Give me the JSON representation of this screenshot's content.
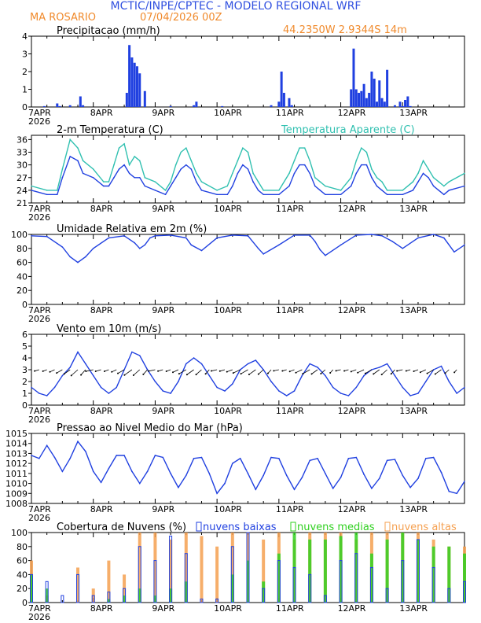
{
  "header": {
    "title": "MCTIC/INPE/CPTEC - MODELO REGIONAL WRF",
    "station": "MA ROSARIO",
    "run": "07/04/2026 00Z",
    "coords": "44.2350W  2.9344S  14m"
  },
  "colors": {
    "title_blue": "#3050e0",
    "header_orange": "#f08a2c",
    "series_blue": "#2040e0",
    "series_cyan": "#30c0b0",
    "cloud_orange": "#f5a050",
    "cloud_green": "#30d020",
    "wind_arrow": "#000000"
  },
  "x_axis": {
    "day_labels": [
      "7APR",
      "8APR",
      "9APR",
      "10APR",
      "11APR",
      "12APR",
      "13APR"
    ],
    "year_label": "2026",
    "x_range_hours": [
      0,
      168
    ]
  },
  "chart_data": [
    {
      "type": "bar",
      "title": "Precipitacao (mm/h)",
      "ylim": [
        0,
        4
      ],
      "yticks": [
        0,
        1,
        2,
        3,
        4
      ],
      "series": [
        {
          "name": "",
          "x": [
            5,
            10,
            11,
            15,
            19,
            20,
            37,
            38,
            39,
            40,
            41,
            42,
            44,
            54,
            63,
            64,
            74,
            93,
            96,
            97,
            98,
            100,
            101,
            124,
            125,
            126,
            127,
            128,
            129,
            130,
            131,
            132,
            133,
            134,
            135,
            136,
            137,
            138,
            141,
            143,
            144,
            145,
            146,
            147
          ],
          "values": [
            0.05,
            0.2,
            0.05,
            0.1,
            0.6,
            0.1,
            0.8,
            3.5,
            2.8,
            2.5,
            2.3,
            1.9,
            0.9,
            0.05,
            0.1,
            0.3,
            0.05,
            0.1,
            0.3,
            2.0,
            0.8,
            0.5,
            0.1,
            1.0,
            3.3,
            1.0,
            0.8,
            0.9,
            1.3,
            0.5,
            0.8,
            2.0,
            1.6,
            0.3,
            1.5,
            0.5,
            0.3,
            2.1,
            0.1,
            0.3,
            0.05,
            0.4,
            0.6,
            0.05
          ]
        }
      ]
    },
    {
      "type": "line",
      "title": "2-m Temperatura (C)",
      "legend_label": "Temperatura Aparente (C)",
      "ylim": [
        21,
        37
      ],
      "yticks": [
        21,
        24,
        27,
        30,
        33,
        36
      ],
      "series": [
        {
          "name": "",
          "x": [
            0,
            6,
            10,
            12,
            15,
            18,
            20,
            24,
            28,
            30,
            32,
            34,
            36,
            38,
            40,
            42,
            44,
            48,
            52,
            54,
            56,
            58,
            60,
            62,
            64,
            66,
            72,
            76,
            78,
            80,
            82,
            84,
            86,
            88,
            90,
            96,
            100,
            102,
            104,
            106,
            108,
            110,
            112,
            114,
            120,
            124,
            126,
            128,
            130,
            132,
            134,
            136,
            138,
            144,
            148,
            150,
            152,
            154,
            156,
            158,
            160,
            162,
            168
          ],
          "values": [
            24,
            23,
            23,
            27,
            32,
            31,
            28,
            27,
            25,
            25,
            27,
            29,
            30,
            28,
            27,
            27,
            25,
            24,
            23,
            25,
            27,
            29,
            30,
            29,
            26,
            24,
            23,
            23,
            25,
            28,
            30,
            29,
            26,
            24,
            23,
            23,
            25,
            28,
            30,
            30,
            28,
            25,
            24,
            23,
            23,
            25,
            28,
            30,
            30,
            27,
            25,
            24,
            23,
            23,
            24,
            26,
            28,
            27,
            25,
            24,
            23,
            24,
            25
          ]
        },
        {
          "name": "Temperatura Aparente (C)",
          "x": [
            0,
            6,
            10,
            12,
            15,
            18,
            20,
            24,
            28,
            30,
            32,
            34,
            36,
            38,
            40,
            42,
            44,
            48,
            52,
            54,
            56,
            58,
            60,
            62,
            64,
            66,
            72,
            76,
            78,
            80,
            82,
            84,
            86,
            88,
            90,
            96,
            100,
            102,
            104,
            106,
            108,
            110,
            112,
            114,
            120,
            124,
            126,
            128,
            130,
            132,
            134,
            136,
            138,
            144,
            148,
            150,
            152,
            154,
            156,
            158,
            160,
            162,
            168
          ],
          "values": [
            25,
            24,
            24,
            29,
            36,
            34,
            31,
            29,
            26,
            26,
            30,
            34,
            35,
            30,
            32,
            31,
            27,
            26,
            24,
            26,
            30,
            33,
            34,
            31,
            28,
            26,
            24,
            25,
            28,
            31,
            34,
            33,
            28,
            26,
            24,
            24,
            28,
            31,
            34,
            34,
            31,
            27,
            26,
            25,
            24,
            27,
            31,
            34,
            33,
            29,
            27,
            26,
            24,
            24,
            26,
            28,
            31,
            29,
            27,
            26,
            25,
            26,
            28
          ]
        }
      ]
    },
    {
      "type": "line",
      "title": "Umidade Relativa em 2m (%)",
      "ylim": [
        0,
        100
      ],
      "yticks": [
        0,
        20,
        40,
        60,
        80,
        100
      ],
      "series": [
        {
          "name": "",
          "x": [
            0,
            6,
            12,
            15,
            18,
            21,
            24,
            30,
            36,
            40,
            42,
            44,
            46,
            48,
            54,
            60,
            62,
            66,
            72,
            78,
            84,
            88,
            90,
            96,
            102,
            108,
            110,
            112,
            114,
            120,
            126,
            132,
            136,
            140,
            144,
            150,
            156,
            160,
            164,
            168
          ],
          "values": [
            98,
            97,
            82,
            68,
            60,
            68,
            80,
            95,
            98,
            88,
            80,
            85,
            95,
            98,
            99,
            95,
            85,
            77,
            95,
            99,
            98,
            80,
            72,
            85,
            99,
            99,
            90,
            78,
            70,
            85,
            99,
            100,
            98,
            90,
            80,
            95,
            100,
            95,
            75,
            85
          ]
        }
      ]
    },
    {
      "type": "line",
      "title": "Vento em 10m (m/s)",
      "ylim": [
        0,
        6
      ],
      "yticks": [
        0,
        1,
        2,
        3,
        4,
        5,
        6
      ],
      "series": [
        {
          "name": "",
          "x": [
            0,
            3,
            6,
            9,
            12,
            15,
            18,
            21,
            24,
            27,
            30,
            33,
            36,
            39,
            42,
            45,
            48,
            51,
            54,
            57,
            60,
            63,
            66,
            69,
            72,
            75,
            78,
            81,
            84,
            87,
            90,
            93,
            96,
            99,
            102,
            105,
            108,
            111,
            114,
            117,
            120,
            123,
            126,
            129,
            132,
            135,
            138,
            141,
            144,
            147,
            150,
            153,
            156,
            159,
            162,
            165,
            168
          ],
          "values": [
            1.5,
            1.0,
            0.8,
            1.5,
            2.5,
            3.2,
            4.5,
            3.5,
            2.5,
            1.5,
            1.0,
            1.5,
            3.0,
            4.5,
            4.2,
            3.0,
            2.0,
            1.2,
            1.0,
            2.0,
            3.5,
            4.0,
            3.5,
            2.5,
            1.5,
            1.2,
            1.8,
            3.0,
            3.5,
            3.8,
            3.0,
            2.0,
            1.2,
            0.8,
            1.2,
            2.5,
            3.5,
            3.2,
            2.5,
            1.5,
            1.0,
            0.8,
            1.5,
            2.5,
            3.0,
            3.2,
            3.5,
            2.5,
            1.5,
            0.8,
            1.0,
            2.0,
            3.0,
            3.3,
            2.0,
            1.0,
            1.5
          ]
        }
      ]
    },
    {
      "type": "line",
      "title": "Pressao ao Nivel Medio do Mar (hPa)",
      "ylim": [
        1008,
        1015
      ],
      "yticks": [
        1008,
        1009,
        1010,
        1011,
        1012,
        1013,
        1014,
        1015
      ],
      "series": [
        {
          "name": "",
          "x": [
            0,
            3,
            6,
            9,
            12,
            15,
            18,
            21,
            24,
            27,
            30,
            33,
            36,
            39,
            42,
            45,
            48,
            51,
            54,
            57,
            60,
            63,
            66,
            69,
            72,
            75,
            78,
            81,
            84,
            87,
            90,
            93,
            96,
            99,
            102,
            105,
            108,
            111,
            114,
            117,
            120,
            123,
            126,
            129,
            132,
            135,
            138,
            141,
            144,
            147,
            150,
            153,
            156,
            159,
            162,
            165,
            168
          ],
          "values": [
            1012.8,
            1012.5,
            1013.8,
            1012.6,
            1011.2,
            1012.5,
            1014.2,
            1013.2,
            1011.2,
            1010.1,
            1011.5,
            1012.8,
            1012.8,
            1011.2,
            1010.0,
            1011.2,
            1012.8,
            1012.6,
            1011.0,
            1009.6,
            1010.8,
            1012.5,
            1012.6,
            1011.0,
            1009.0,
            1010.0,
            1012.0,
            1012.5,
            1011.0,
            1009.4,
            1010.8,
            1012.6,
            1012.5,
            1010.8,
            1009.4,
            1010.6,
            1012.3,
            1012.5,
            1011.0,
            1009.5,
            1010.6,
            1012.5,
            1012.6,
            1010.9,
            1009.5,
            1010.5,
            1012.3,
            1012.4,
            1010.8,
            1009.6,
            1010.5,
            1012.5,
            1012.6,
            1011.1,
            1009.2,
            1009.0,
            1010.2
          ]
        }
      ]
    },
    {
      "type": "bar",
      "title": "Cobertura de Nuvens (%)",
      "ylim": [
        0,
        100
      ],
      "yticks": [
        0,
        20,
        40,
        60,
        80,
        100
      ],
      "series": [
        {
          "name": "nuvens baixas",
          "x": [
            0,
            6,
            12,
            18,
            24,
            30,
            36,
            42,
            48,
            54,
            60,
            66,
            72,
            78,
            84,
            90,
            96,
            102,
            108,
            114,
            120,
            126,
            132,
            138,
            144,
            150,
            156,
            162,
            168
          ],
          "values": [
            40,
            30,
            10,
            40,
            10,
            15,
            20,
            80,
            60,
            95,
            70,
            5,
            5,
            80,
            100,
            20,
            60,
            50,
            40,
            10,
            60,
            70,
            50,
            20,
            60,
            90,
            50,
            20,
            30
          ]
        },
        {
          "name": "nuvens medias",
          "x": [
            0,
            6,
            12,
            18,
            24,
            30,
            36,
            42,
            48,
            54,
            60,
            66,
            72,
            78,
            84,
            90,
            96,
            102,
            108,
            114,
            120,
            126,
            132,
            138,
            144,
            150,
            156,
            162,
            168
          ],
          "values": [
            40,
            20,
            0,
            0,
            0,
            5,
            10,
            20,
            10,
            20,
            30,
            0,
            0,
            40,
            60,
            30,
            70,
            100,
            90,
            90,
            95,
            100,
            70,
            90,
            100,
            90,
            80,
            80,
            70
          ]
        },
        {
          "name": "nuvens altas",
          "x": [
            0,
            6,
            12,
            18,
            24,
            30,
            36,
            42,
            48,
            54,
            60,
            66,
            72,
            78,
            84,
            90,
            96,
            102,
            108,
            114,
            120,
            126,
            132,
            138,
            144,
            150,
            156,
            162,
            168
          ],
          "values": [
            60,
            10,
            0,
            50,
            20,
            60,
            40,
            100,
            100,
            90,
            100,
            95,
            80,
            100,
            100,
            90,
            100,
            90,
            100,
            100,
            100,
            90,
            100,
            100,
            100,
            100,
            90,
            80,
            80
          ]
        }
      ]
    }
  ]
}
